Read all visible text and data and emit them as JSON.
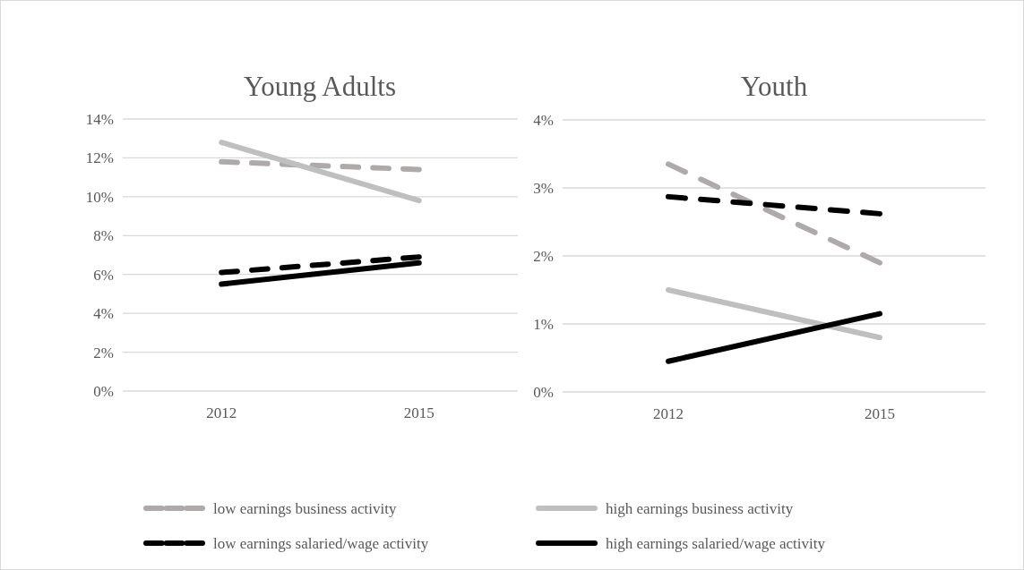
{
  "chart_data": [
    {
      "type": "line",
      "title": "Young Adults",
      "categories": [
        "2012",
        "2015"
      ],
      "ylim": [
        0,
        14
      ],
      "yticks": [
        {
          "value": 0,
          "label": "0%"
        },
        {
          "value": 2,
          "label": "2%"
        },
        {
          "value": 4,
          "label": "4%"
        },
        {
          "value": 6,
          "label": "6%"
        },
        {
          "value": 8,
          "label": "8%"
        },
        {
          "value": 10,
          "label": "10%"
        },
        {
          "value": 12,
          "label": "12%"
        },
        {
          "value": 14,
          "label": "14%"
        }
      ],
      "grid": "y",
      "legend": "bottom",
      "marker": "none",
      "series": [
        {
          "name": "low earnings business activity",
          "color": "#aeaaaa",
          "line_style": "dashed",
          "values": [
            11.8,
            11.4
          ]
        },
        {
          "name": "high earnings business activity",
          "color": "#bfbfbf",
          "line_style": "solid",
          "values": [
            12.8,
            9.8
          ]
        },
        {
          "name": "low earnings salaried/wage activity",
          "color": "#000000",
          "line_style": "dashed",
          "values": [
            6.1,
            6.9
          ]
        },
        {
          "name": "high earnings salaried/wage activity",
          "color": "#000000",
          "line_style": "solid",
          "values": [
            5.5,
            6.6
          ]
        }
      ]
    },
    {
      "type": "line",
      "title": "Youth",
      "categories": [
        "2012",
        "2015"
      ],
      "ylim": [
        0,
        4
      ],
      "yticks": [
        {
          "value": 0,
          "label": "0%"
        },
        {
          "value": 1,
          "label": "1%"
        },
        {
          "value": 2,
          "label": "2%"
        },
        {
          "value": 3,
          "label": "3%"
        },
        {
          "value": 4,
          "label": "4%"
        }
      ],
      "grid": "y",
      "marker": "none",
      "series": [
        {
          "color": "#aeaaaa",
          "line_style": "dashed",
          "values": [
            3.35,
            1.9
          ]
        },
        {
          "color": "#bfbfbf",
          "line_style": "solid",
          "values": [
            1.5,
            0.8
          ]
        },
        {
          "color": "#000000",
          "line_style": "dashed",
          "values": [
            2.87,
            2.62
          ]
        },
        {
          "color": "#000000",
          "line_style": "solid",
          "values": [
            0.45,
            1.15
          ]
        }
      ]
    }
  ]
}
